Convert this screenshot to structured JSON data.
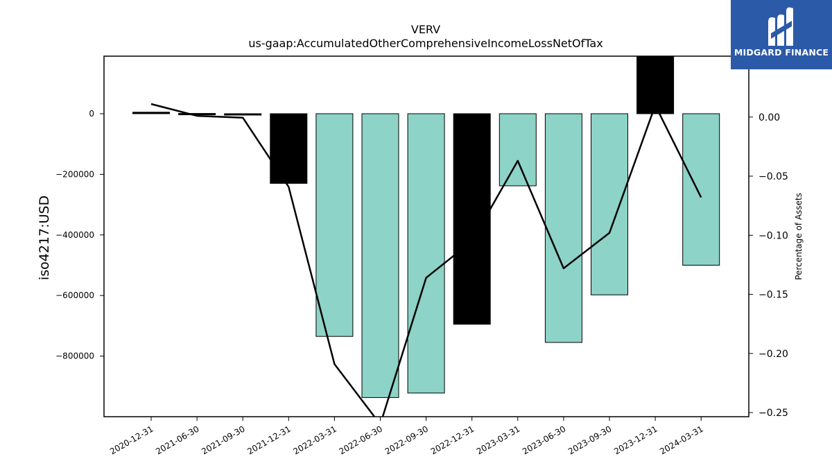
{
  "chart_data": {
    "type": "bar+line",
    "title": "VERV",
    "subtitle": "us-gaap:AccumulatedOtherComprehensiveIncomeLossNetOfTax",
    "ylabel": "iso4217:USD",
    "y2label": "Percentage of Assets",
    "categories": [
      "2020-12-31",
      "2021-06-30",
      "2021-09-30",
      "2021-12-31",
      "2022-03-31",
      "2022-06-30",
      "2022-09-30",
      "2022-12-31",
      "2023-03-31",
      "2023-06-30",
      "2023-09-30",
      "2023-12-31",
      "2024-03-31"
    ],
    "bar_values": [
      5000,
      1000,
      -2000,
      -230000,
      -735000,
      -937000,
      -922000,
      -695000,
      -238000,
      -755000,
      -598000,
      190000,
      -500000
    ],
    "bar_colors": [
      "#000000",
      "#000000",
      "#000000",
      "#000000",
      "#8dd3c7",
      "#8dd3c7",
      "#8dd3c7",
      "#000000",
      "#8dd3c7",
      "#8dd3c7",
      "#8dd3c7",
      "#000000",
      "#8dd3c7"
    ],
    "line_values": [
      0.011,
      0.001,
      -0.0005,
      -0.059,
      -0.209,
      -0.26,
      -0.136,
      -0.105,
      -0.037,
      -0.128,
      -0.098,
      0.01,
      -0.068
    ],
    "ylim": [
      -1000000,
      190000
    ],
    "y2lim": [
      -0.2535,
      0.0515
    ],
    "yticks": [
      0,
      -200000,
      -400000,
      -600000,
      -800000
    ],
    "ytick_labels": [
      "0",
      "−200000",
      "−400000",
      "−600000",
      "−800000"
    ],
    "y2ticks": [
      0.0,
      -0.05,
      -0.1,
      -0.15,
      -0.2,
      -0.25
    ],
    "y2tick_labels": [
      "0.00",
      "−0.05",
      "−0.10",
      "−0.15",
      "−0.20",
      "−0.25"
    ],
    "grid": false,
    "colors": {
      "bar_default": "#8dd3c7",
      "bar_alt": "#000000",
      "line": "#000000"
    }
  },
  "logo": {
    "text": "MIDGARD FINANCE"
  }
}
